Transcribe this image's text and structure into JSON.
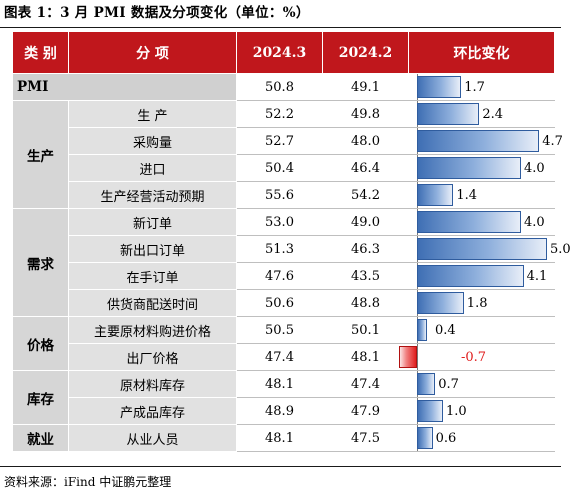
{
  "title": "图表 1：3 月 PMI 数据及分项变化（单位：%）",
  "headers": {
    "category": "类 别",
    "item": "分 项",
    "col1": "2024.3",
    "col2": "2024.2",
    "change": "环比变化"
  },
  "pmi": {
    "label": "PMI",
    "v1": "50.8",
    "v2": "49.1",
    "change": 1.7,
    "change_label": "1.7"
  },
  "groups": [
    {
      "category": "生产",
      "rows": [
        {
          "item": "生 产",
          "v1": "52.2",
          "v2": "49.8",
          "change": 2.4,
          "change_label": "2.4"
        },
        {
          "item": "采购量",
          "v1": "52.7",
          "v2": "48.0",
          "change": 4.7,
          "change_label": "4.7"
        },
        {
          "item": "进口",
          "v1": "50.4",
          "v2": "46.4",
          "change": 4.0,
          "change_label": "4.0"
        },
        {
          "item": "生产经营活动预期",
          "v1": "55.6",
          "v2": "54.2",
          "change": 1.4,
          "change_label": "1.4"
        }
      ]
    },
    {
      "category": "需求",
      "rows": [
        {
          "item": "新订单",
          "v1": "53.0",
          "v2": "49.0",
          "change": 4.0,
          "change_label": "4.0"
        },
        {
          "item": "新出口订单",
          "v1": "51.3",
          "v2": "46.3",
          "change": 5.0,
          "change_label": "5.0"
        },
        {
          "item": "在手订单",
          "v1": "47.6",
          "v2": "43.5",
          "change": 4.1,
          "change_label": "4.1"
        },
        {
          "item": "供货商配送时间",
          "v1": "50.6",
          "v2": "48.8",
          "change": 1.8,
          "change_label": "1.8"
        }
      ]
    },
    {
      "category": "价格",
      "rows": [
        {
          "item": "主要原材料购进价格",
          "v1": "50.5",
          "v2": "50.1",
          "change": 0.4,
          "change_label": "0.4"
        },
        {
          "item": "出厂价格",
          "v1": "47.4",
          "v2": "48.1",
          "change": -0.7,
          "change_label": "-0.7"
        }
      ]
    },
    {
      "category": "库存",
      "rows": [
        {
          "item": "原材料库存",
          "v1": "48.1",
          "v2": "47.4",
          "change": 0.7,
          "change_label": "0.7"
        },
        {
          "item": "产成品库存",
          "v1": "48.9",
          "v2": "47.9",
          "change": 1.0,
          "change_label": "1.0"
        }
      ]
    },
    {
      "category": "就业",
      "rows": [
        {
          "item": "从业人员",
          "v1": "48.1",
          "v2": "47.5",
          "change": 0.6,
          "change_label": "0.6"
        }
      ]
    }
  ],
  "max_change": 5.0,
  "source": "资料来源：iFind 中证鹏元整理",
  "colors": {
    "header": "#c0171c",
    "bar_positive": "#3f6fb4",
    "bar_negative": "#e01e1e",
    "negative_text": "#e01e1e"
  }
}
